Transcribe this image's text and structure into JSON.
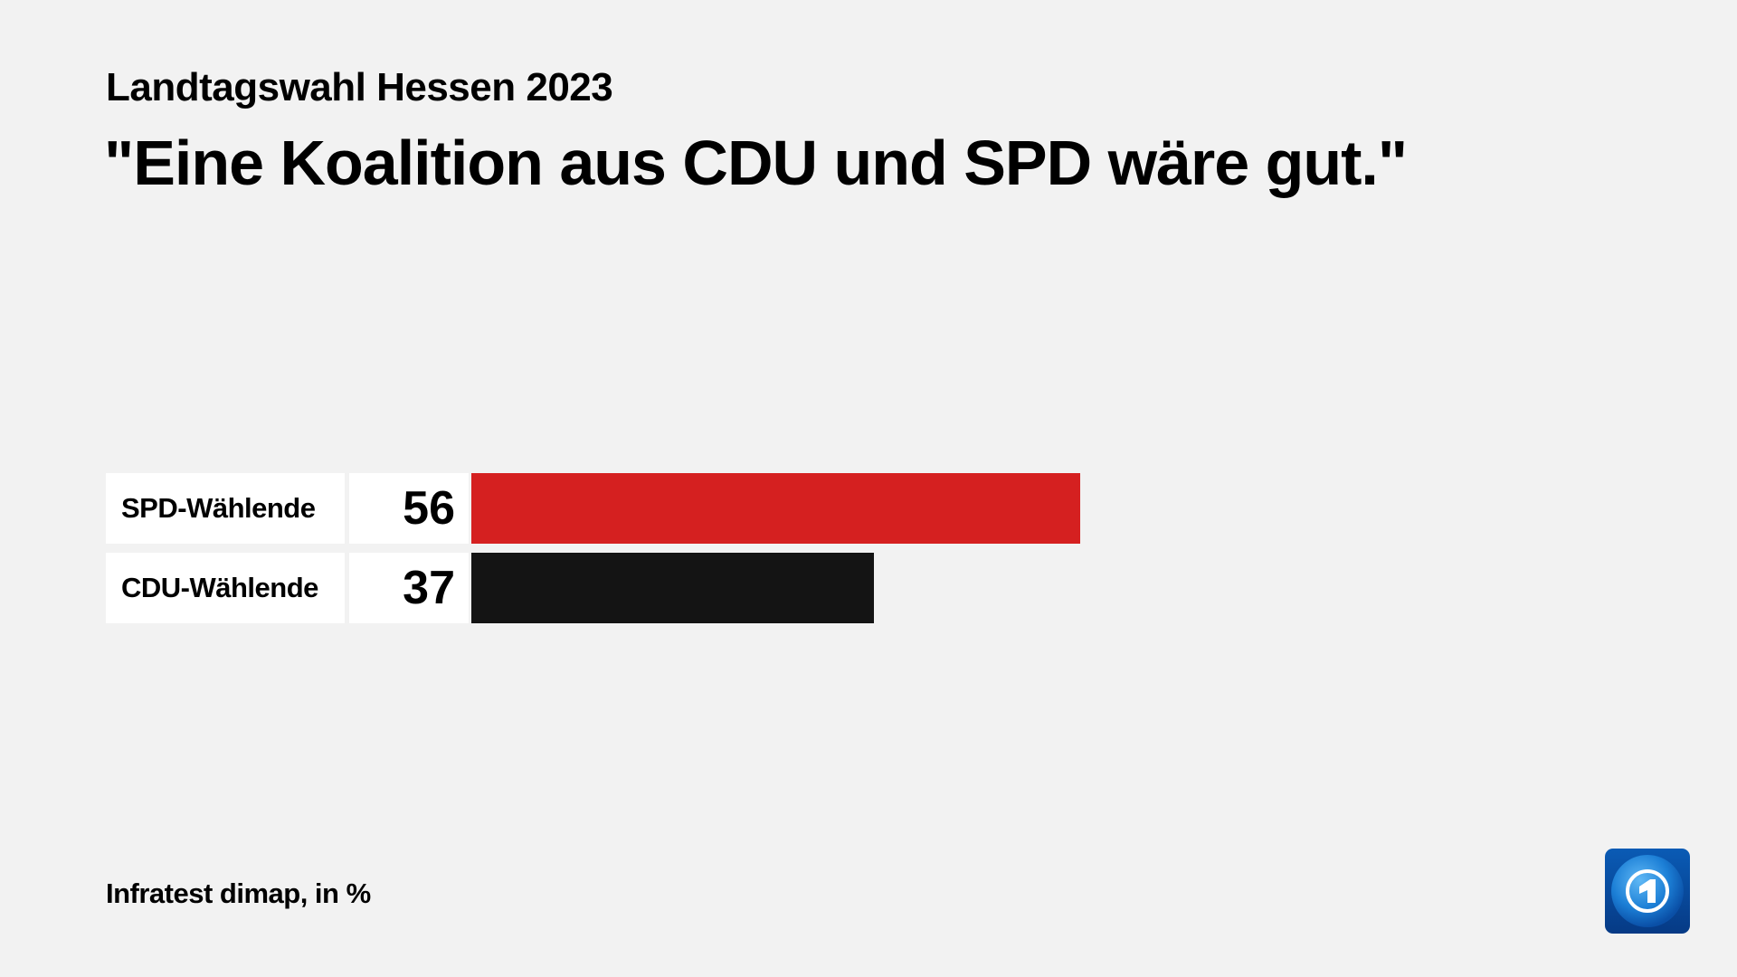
{
  "header": {
    "subtitle": "Landtagswahl Hessen 2023",
    "title": "\"Eine Koalition aus CDU und SPD wäre gut.\""
  },
  "chart_data": {
    "type": "bar",
    "orientation": "horizontal",
    "categories": [
      "SPD-Wählende",
      "CDU-Wählende"
    ],
    "values": [
      56,
      37
    ],
    "colors": [
      "#d52020",
      "#141414"
    ],
    "unit": "%",
    "xlim": [
      0,
      100
    ],
    "grid": false
  },
  "footer": {
    "source": "Infratest dimap, in %"
  },
  "logo": {
    "name": "tagesschau-logo"
  }
}
